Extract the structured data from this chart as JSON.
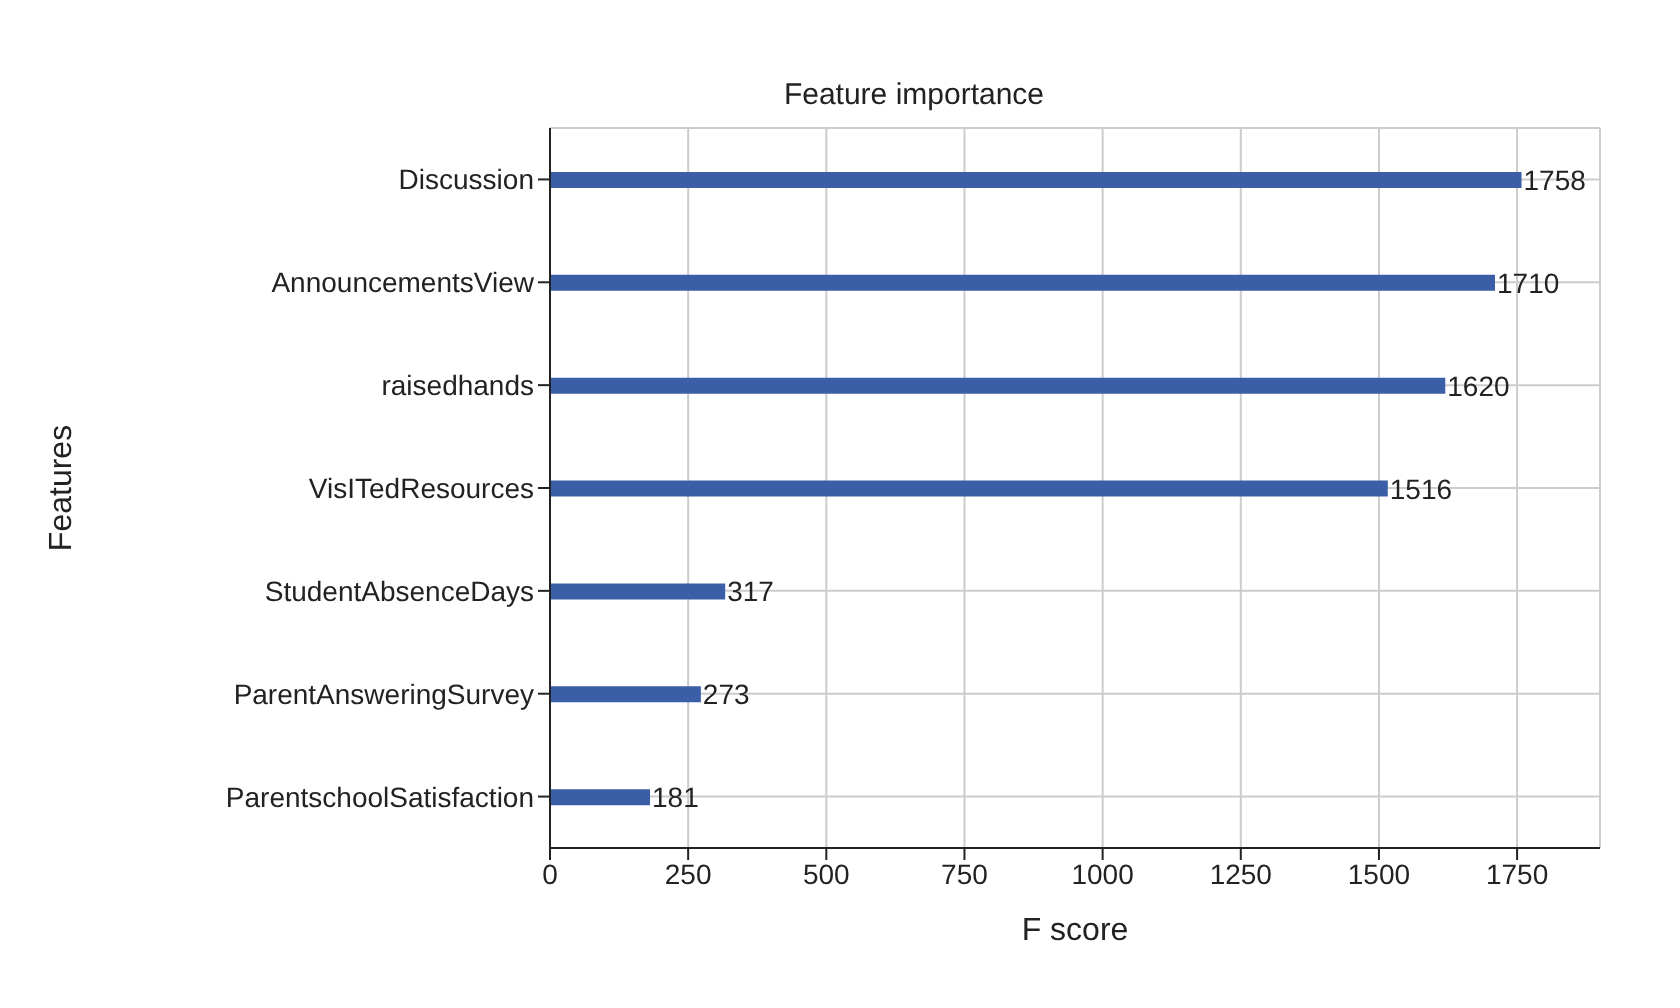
{
  "chart_data": {
    "type": "bar",
    "orientation": "horizontal",
    "title": "Feature importance",
    "xlabel": "F score",
    "ylabel": "Features",
    "categories": [
      "Discussion",
      "AnnouncementsView",
      "raisedhands",
      "VisITedResources",
      "StudentAbsenceDays",
      "ParentAnsweringSurvey",
      "ParentschoolSatisfaction"
    ],
    "values": [
      1758,
      1710,
      1620,
      1516,
      317,
      273,
      181
    ],
    "color": "#3a5fa6",
    "data_labels": true,
    "xlim": [
      0,
      1900
    ],
    "xticks": [
      0,
      250,
      500,
      750,
      1000,
      1250,
      1500,
      1750
    ],
    "grid": true,
    "legend": false
  }
}
